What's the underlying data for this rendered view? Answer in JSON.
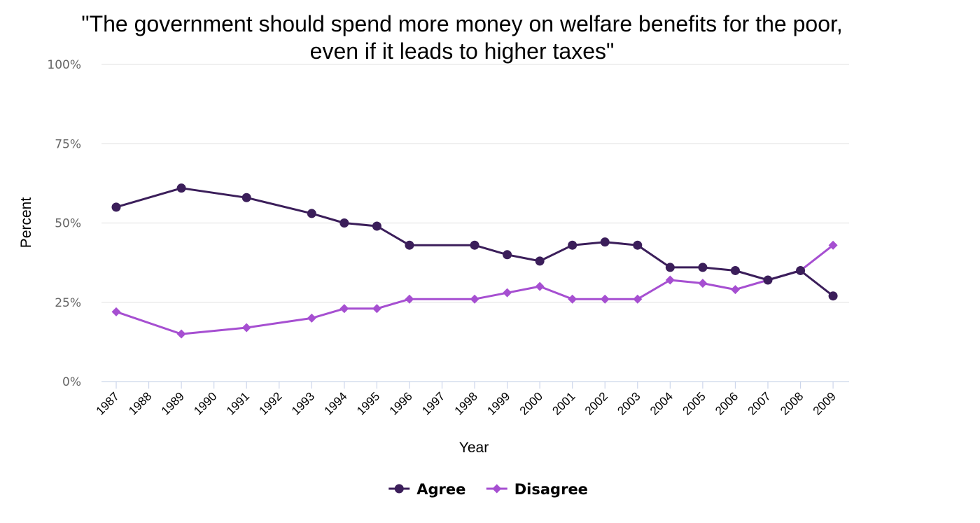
{
  "chart_data": {
    "type": "line",
    "title_lines": [
      "\"The government should spend more money on welfare benefits for the poor,",
      "even if it leads to higher taxes\""
    ],
    "xlabel": "Year",
    "ylabel": "Percent",
    "categories": [
      "1987",
      "1988",
      "1989",
      "1990",
      "1991",
      "1992",
      "1993",
      "1994",
      "1995",
      "1996",
      "1997",
      "1998",
      "1999",
      "2000",
      "2001",
      "2002",
      "2003",
      "2004",
      "2005",
      "2006",
      "2007",
      "2008",
      "2009"
    ],
    "y_ticks": [
      "0%",
      "25%",
      "50%",
      "75%",
      "100%"
    ],
    "ylim": [
      0,
      100
    ],
    "grid": true,
    "legend_position": "bottom",
    "series": [
      {
        "name": "Agree",
        "color": "#3b1e5a",
        "marker": "circle",
        "values": [
          55,
          null,
          61,
          null,
          58,
          null,
          53,
          50,
          49,
          43,
          null,
          43,
          40,
          38,
          43,
          44,
          43,
          36,
          36,
          35,
          32,
          35,
          27
        ]
      },
      {
        "name": "Disagree",
        "color": "#a64fd1",
        "marker": "diamond",
        "values": [
          22,
          null,
          15,
          null,
          17,
          null,
          20,
          23,
          23,
          26,
          null,
          26,
          28,
          30,
          26,
          26,
          26,
          32,
          31,
          29,
          32,
          35,
          43
        ]
      }
    ]
  }
}
